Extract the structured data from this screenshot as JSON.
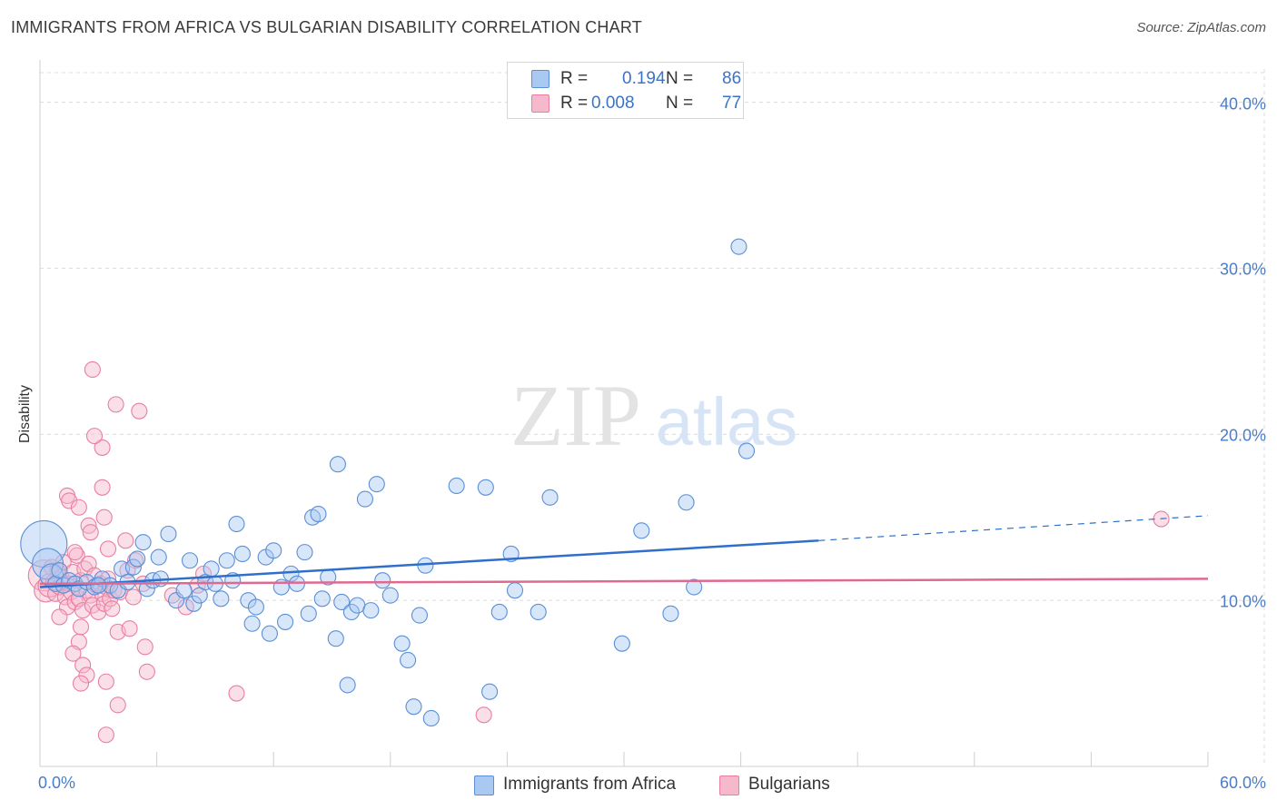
{
  "title": "IMMIGRANTS FROM AFRICA VS BULGARIAN DISABILITY CORRELATION CHART",
  "source": "Source: ZipAtlas.com",
  "watermark": {
    "zip": "ZIP",
    "atlas": "atlas"
  },
  "legend": {
    "rows": [
      {
        "r_label": "R =",
        "r_value": "0.194",
        "n_label": "N =",
        "n_value": "86"
      },
      {
        "r_label": "R =",
        "r_value": "0.008",
        "n_label": "N =",
        "n_value": "77"
      }
    ]
  },
  "bottom_legend": [
    "Immigrants from Africa",
    "Bulgarians"
  ],
  "colors": {
    "blue_fill": "#a9c8f2",
    "blue_stroke": "#5b8fd6",
    "blue_line": "#2f6fcc",
    "pink_fill": "#f6b8cb",
    "pink_stroke": "#e87fa1",
    "pink_line": "#e0698f",
    "tick_text": "#4a7cc8",
    "grid": "#dcdcdc"
  },
  "chart_data": {
    "type": "scatter",
    "title": "IMMIGRANTS FROM AFRICA VS BULGARIAN DISABILITY CORRELATION CHART",
    "xlabel": "",
    "ylabel": "Disability",
    "xlim": [
      0,
      60
    ],
    "ylim": [
      0,
      42
    ],
    "x_tick_labels": [
      "0.0%",
      "60.0%"
    ],
    "y_tick_labels": [
      "10.0%",
      "20.0%",
      "30.0%",
      "40.0%"
    ],
    "y_ticks": [
      10,
      20,
      30,
      40
    ],
    "grid": true,
    "legend_position": "top-center",
    "series": [
      {
        "name": "Immigrants from Africa",
        "r": 0.194,
        "n": 86,
        "trend": {
          "x": [
            0,
            40
          ],
          "y": [
            10.8,
            13.6
          ],
          "dashed_extension": {
            "x": [
              40,
              60
            ],
            "y": [
              13.6,
              15.1
            ]
          }
        },
        "points": [
          [
            0.2,
            13.4,
            3
          ],
          [
            0.4,
            12.2,
            2
          ],
          [
            0.6,
            11.5,
            1.5
          ],
          [
            0.8,
            11.0,
            1
          ],
          [
            1.0,
            11.8,
            1
          ],
          [
            1.2,
            10.9,
            1
          ],
          [
            1.5,
            11.2,
            1
          ],
          [
            1.8,
            11.0,
            1
          ],
          [
            2.0,
            10.7,
            1
          ],
          [
            2.4,
            11.1,
            1
          ],
          [
            2.8,
            10.8,
            1
          ],
          [
            3.2,
            11.3,
            1
          ],
          [
            3.6,
            10.9,
            1
          ],
          [
            4.0,
            10.6,
            1
          ],
          [
            4.2,
            11.9,
            1
          ],
          [
            4.5,
            11.1,
            1
          ],
          [
            4.8,
            12.0,
            1
          ],
          [
            5.0,
            12.5,
            1
          ],
          [
            5.3,
            13.5,
            1
          ],
          [
            5.5,
            10.7,
            1
          ],
          [
            5.8,
            11.2,
            1
          ],
          [
            6.2,
            11.3,
            1
          ],
          [
            6.6,
            14.0,
            1
          ],
          [
            7.0,
            10.0,
            1
          ],
          [
            7.4,
            10.6,
            1
          ],
          [
            7.7,
            12.4,
            1
          ],
          [
            7.9,
            9.8,
            1
          ],
          [
            8.2,
            10.3,
            1
          ],
          [
            8.5,
            11.1,
            1
          ],
          [
            8.8,
            11.9,
            1
          ],
          [
            9.0,
            11.0,
            1
          ],
          [
            9.3,
            10.1,
            1
          ],
          [
            9.6,
            12.4,
            1
          ],
          [
            9.9,
            11.2,
            1
          ],
          [
            10.1,
            14.6,
            1
          ],
          [
            10.4,
            12.8,
            1
          ],
          [
            10.7,
            10.0,
            1
          ],
          [
            10.9,
            8.6,
            1
          ],
          [
            11.1,
            9.6,
            1
          ],
          [
            11.6,
            12.6,
            1
          ],
          [
            11.8,
            8.0,
            1
          ],
          [
            12.0,
            13.0,
            1
          ],
          [
            12.4,
            10.8,
            1
          ],
          [
            12.6,
            8.7,
            1
          ],
          [
            12.9,
            11.6,
            1
          ],
          [
            13.2,
            11.0,
            1
          ],
          [
            13.6,
            12.9,
            1
          ],
          [
            13.8,
            9.2,
            1
          ],
          [
            14.0,
            15.0,
            1
          ],
          [
            14.3,
            15.2,
            1
          ],
          [
            14.5,
            10.1,
            1
          ],
          [
            14.8,
            11.4,
            1
          ],
          [
            15.2,
            7.7,
            1
          ],
          [
            15.5,
            9.9,
            1
          ],
          [
            15.8,
            4.9,
            1
          ],
          [
            16.0,
            9.3,
            1
          ],
          [
            16.3,
            9.7,
            1
          ],
          [
            16.7,
            16.1,
            1
          ],
          [
            17.0,
            9.4,
            1
          ],
          [
            17.3,
            17.0,
            1
          ],
          [
            17.6,
            11.2,
            1
          ],
          [
            18.0,
            10.3,
            1
          ],
          [
            18.6,
            7.4,
            1
          ],
          [
            18.9,
            6.4,
            1
          ],
          [
            19.2,
            3.6,
            1
          ],
          [
            19.5,
            9.1,
            1
          ],
          [
            19.8,
            12.1,
            1
          ],
          [
            20.1,
            2.9,
            1
          ],
          [
            21.4,
            16.9,
            1
          ],
          [
            22.9,
            16.8,
            1
          ],
          [
            23.1,
            4.5,
            1
          ],
          [
            23.6,
            9.3,
            1
          ],
          [
            24.2,
            12.8,
            1
          ],
          [
            24.4,
            10.6,
            1
          ],
          [
            25.6,
            9.3,
            1
          ],
          [
            26.2,
            16.2,
            1
          ],
          [
            29.9,
            7.4,
            1
          ],
          [
            30.9,
            14.2,
            1
          ],
          [
            32.4,
            9.2,
            1
          ],
          [
            33.2,
            15.9,
            1
          ],
          [
            33.6,
            10.8,
            1
          ],
          [
            35.9,
            31.3,
            1
          ],
          [
            36.3,
            19.0,
            1
          ],
          [
            15.3,
            18.2,
            1
          ],
          [
            6.1,
            12.6,
            1
          ],
          [
            3.0,
            10.9,
            1
          ]
        ]
      },
      {
        "name": "Bulgarians",
        "r": 0.008,
        "n": 77,
        "trend": {
          "x": [
            0,
            60
          ],
          "y": [
            11.0,
            11.3
          ]
        },
        "points": [
          [
            0.2,
            11.5,
            2
          ],
          [
            0.3,
            10.6,
            1.5
          ],
          [
            0.5,
            10.9,
            1.5
          ],
          [
            0.6,
            12.0,
            1
          ],
          [
            0.7,
            11.1,
            1
          ],
          [
            0.8,
            10.4,
            1
          ],
          [
            0.9,
            11.8,
            1
          ],
          [
            1.0,
            10.8,
            1
          ],
          [
            1.1,
            11.4,
            1
          ],
          [
            1.2,
            12.3,
            1
          ],
          [
            1.3,
            10.2,
            1
          ],
          [
            1.4,
            9.6,
            1
          ],
          [
            1.5,
            11.0,
            1
          ],
          [
            1.6,
            10.5,
            1
          ],
          [
            1.7,
            11.7,
            1
          ],
          [
            1.8,
            9.9,
            1
          ],
          [
            1.9,
            12.7,
            1
          ],
          [
            2.0,
            10.1,
            1
          ],
          [
            2.1,
            11.2,
            1
          ],
          [
            2.2,
            9.4,
            1
          ],
          [
            2.3,
            11.9,
            1
          ],
          [
            2.4,
            10.6,
            1
          ],
          [
            2.5,
            12.2,
            1
          ],
          [
            2.6,
            10.3,
            1
          ],
          [
            2.7,
            9.7,
            1
          ],
          [
            2.8,
            11.5,
            1
          ],
          [
            2.9,
            10.9,
            1
          ],
          [
            3.0,
            9.3,
            1
          ],
          [
            3.1,
            11.0,
            1
          ],
          [
            3.2,
            10.4,
            1
          ],
          [
            3.3,
            9.8,
            1
          ],
          [
            3.4,
            10.8,
            1
          ],
          [
            3.5,
            11.3,
            1
          ],
          [
            3.6,
            10.1,
            1
          ],
          [
            3.7,
            9.5,
            1
          ],
          [
            3.8,
            10.6,
            1
          ],
          [
            1.4,
            16.3,
            1
          ],
          [
            1.5,
            16.0,
            1
          ],
          [
            2.0,
            15.6,
            1
          ],
          [
            2.5,
            14.5,
            1
          ],
          [
            2.6,
            14.1,
            1
          ],
          [
            3.2,
            16.8,
            1
          ],
          [
            3.3,
            15.0,
            1
          ],
          [
            3.5,
            13.1,
            1
          ],
          [
            3.2,
            19.2,
            1
          ],
          [
            2.8,
            19.9,
            1
          ],
          [
            3.9,
            21.8,
            1
          ],
          [
            5.1,
            21.4,
            1
          ],
          [
            2.7,
            23.9,
            1
          ],
          [
            4.0,
            8.1,
            1
          ],
          [
            4.6,
            8.3,
            1
          ],
          [
            2.1,
            8.4,
            1
          ],
          [
            2.0,
            7.5,
            1
          ],
          [
            1.7,
            6.8,
            1
          ],
          [
            2.2,
            6.1,
            1
          ],
          [
            2.4,
            5.5,
            1
          ],
          [
            2.1,
            5.0,
            1
          ],
          [
            3.4,
            5.1,
            1
          ],
          [
            4.0,
            3.7,
            1
          ],
          [
            3.4,
            1.9,
            1
          ],
          [
            5.4,
            7.2,
            1
          ],
          [
            5.5,
            5.7,
            1
          ],
          [
            4.4,
            13.6,
            1
          ],
          [
            4.9,
            12.4,
            1
          ],
          [
            5.3,
            11.0,
            1
          ],
          [
            4.1,
            10.5,
            1
          ],
          [
            4.5,
            11.8,
            1
          ],
          [
            6.8,
            10.3,
            1
          ],
          [
            7.5,
            9.6,
            1
          ],
          [
            8.1,
            10.9,
            1
          ],
          [
            8.4,
            11.6,
            1
          ],
          [
            10.1,
            4.4,
            1
          ],
          [
            22.8,
            3.1,
            1
          ],
          [
            57.6,
            14.9,
            1
          ],
          [
            1.0,
            9.0,
            1
          ],
          [
            1.8,
            12.9,
            1
          ],
          [
            4.8,
            10.2,
            1
          ]
        ]
      }
    ]
  }
}
